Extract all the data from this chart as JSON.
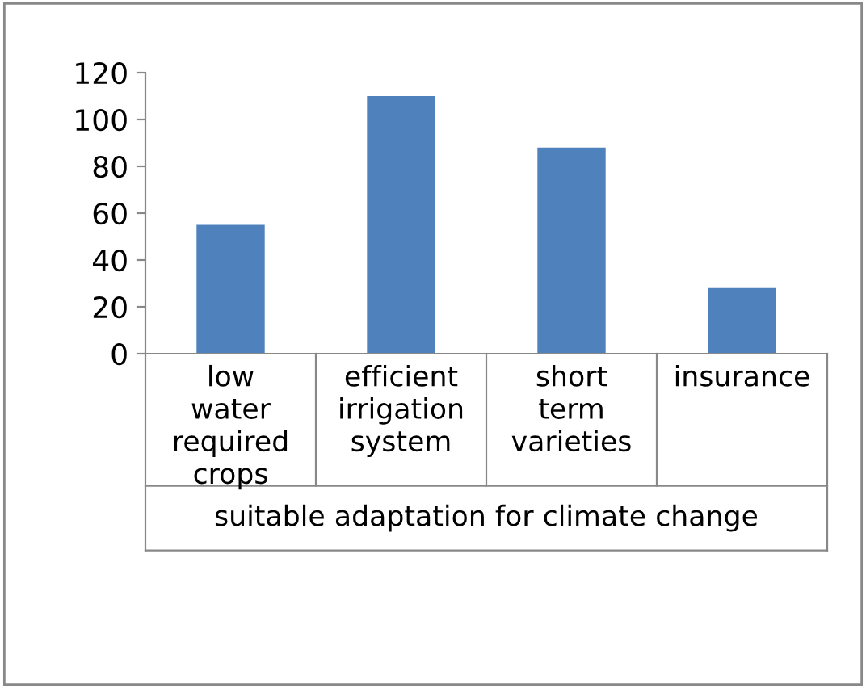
{
  "chart_data": {
    "type": "bar",
    "xlabel": "suitable adaptation for climate change",
    "categories": [
      "low\nwater\nrequired\ncrops",
      "efficient\nirrigation\nsystem",
      "short\nterm\nvarieties",
      "insurance"
    ],
    "values": [
      55,
      110,
      88,
      28
    ],
    "color": "#4f81bd",
    "ylim": [
      0,
      120
    ],
    "yticks": [
      0,
      20,
      40,
      60,
      80,
      100,
      120
    ],
    "grid": false,
    "legend": false
  }
}
